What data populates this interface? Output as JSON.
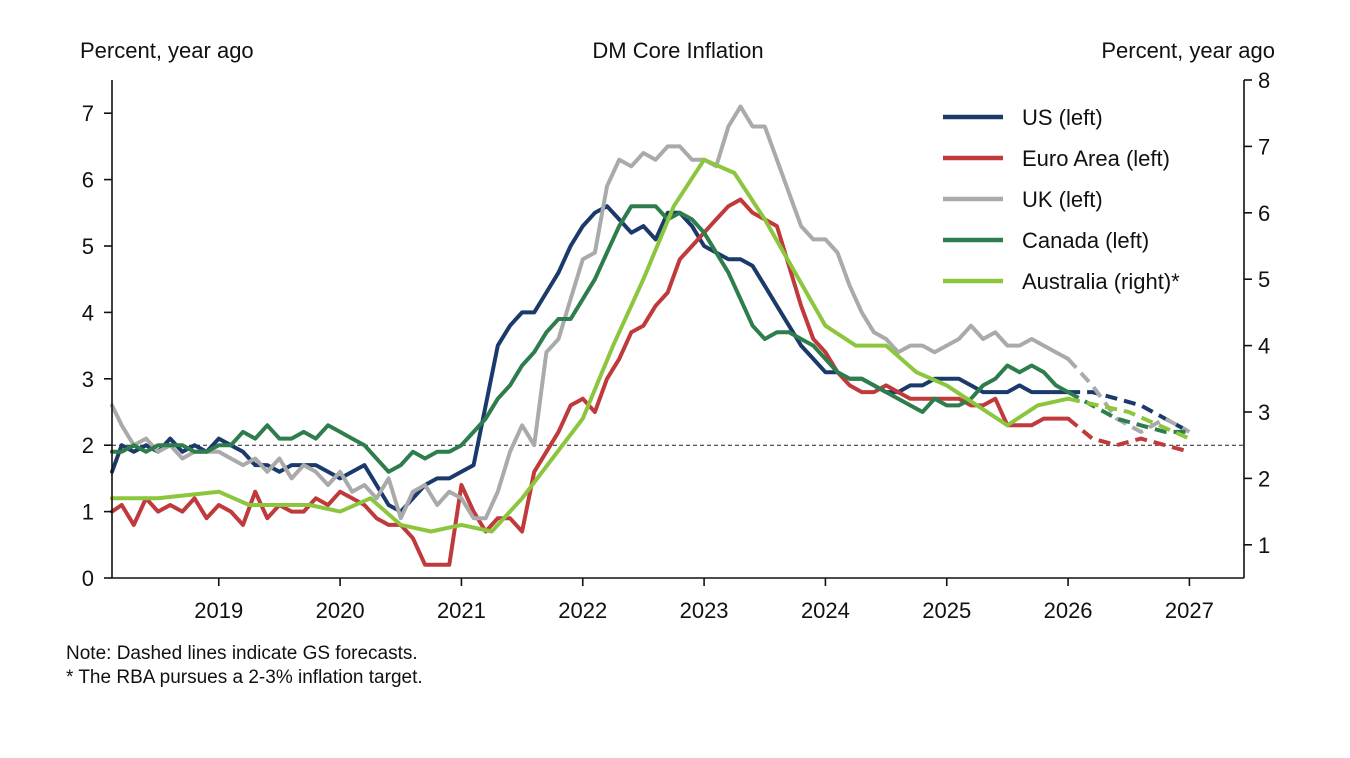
{
  "chart_data": {
    "type": "line",
    "title": "DM Core Inflation",
    "ylabel_left": "Percent, year ago",
    "ylabel_right": "Percent, year ago",
    "x_range": [
      2018.12,
      2027.45
    ],
    "x_ticks": [
      2019,
      2020,
      2021,
      2022,
      2023,
      2024,
      2025,
      2026,
      2027
    ],
    "ylim_left": [
      0,
      7.5
    ],
    "ylim_right": [
      0.5,
      8
    ],
    "y_ticks_left": [
      0,
      1,
      2,
      3,
      4,
      5,
      6,
      7
    ],
    "y_ticks_right": [
      1,
      2,
      3,
      4,
      5,
      6,
      7,
      8
    ],
    "reference_line": {
      "axis": "left",
      "y": 2,
      "style": "dashed"
    },
    "legend_position": "top-right",
    "series": [
      {
        "name": "US (left)",
        "axis": "left",
        "color": "#1b3a6b",
        "x": [
          2018.12,
          2018.2,
          2018.3,
          2018.4,
          2018.5,
          2018.6,
          2018.7,
          2018.8,
          2018.9,
          2019.0,
          2019.1,
          2019.2,
          2019.3,
          2019.4,
          2019.5,
          2019.6,
          2019.7,
          2019.8,
          2019.9,
          2020.0,
          2020.1,
          2020.2,
          2020.3,
          2020.4,
          2020.5,
          2020.6,
          2020.7,
          2020.8,
          2020.9,
          2021.0,
          2021.1,
          2021.2,
          2021.3,
          2021.4,
          2021.5,
          2021.6,
          2021.7,
          2021.8,
          2021.9,
          2022.0,
          2022.1,
          2022.2,
          2022.3,
          2022.4,
          2022.5,
          2022.6,
          2022.7,
          2022.8,
          2022.9,
          2023.0,
          2023.1,
          2023.2,
          2023.3,
          2023.4,
          2023.5,
          2023.6,
          2023.7,
          2023.8,
          2023.9,
          2024.0,
          2024.1,
          2024.2,
          2024.3,
          2024.4,
          2024.5,
          2024.6,
          2024.7,
          2024.8,
          2024.9,
          2025.0,
          2025.1,
          2025.2,
          2025.3,
          2025.4,
          2025.5,
          2025.6,
          2025.7,
          2025.8,
          2025.9,
          2026.0
        ],
        "y": [
          1.6,
          2.0,
          1.9,
          2.0,
          1.9,
          2.1,
          1.9,
          2.0,
          1.9,
          2.1,
          2.0,
          1.9,
          1.7,
          1.7,
          1.6,
          1.7,
          1.7,
          1.7,
          1.6,
          1.5,
          1.6,
          1.7,
          1.4,
          1.1,
          1.0,
          1.2,
          1.4,
          1.5,
          1.5,
          1.6,
          1.7,
          2.6,
          3.5,
          3.8,
          4.0,
          4.0,
          4.3,
          4.6,
          5.0,
          5.3,
          5.5,
          5.6,
          5.4,
          5.2,
          5.3,
          5.1,
          5.5,
          5.5,
          5.3,
          5.0,
          4.9,
          4.8,
          4.8,
          4.7,
          4.4,
          4.1,
          3.8,
          3.5,
          3.3,
          3.1,
          3.1,
          3.0,
          3.0,
          2.9,
          2.8,
          2.8,
          2.9,
          2.9,
          3.0,
          3.0,
          3.0,
          2.9,
          2.8,
          2.8,
          2.8,
          2.9,
          2.8,
          2.8,
          2.8,
          2.8
        ],
        "forecast_x": [
          2026.0,
          2026.2,
          2026.4,
          2026.6,
          2026.8,
          2027.0
        ],
        "forecast_y": [
          2.8,
          2.8,
          2.7,
          2.6,
          2.4,
          2.2
        ]
      },
      {
        "name": "Euro Area (left)",
        "axis": "left",
        "color": "#c0393b",
        "x": [
          2018.12,
          2018.2,
          2018.3,
          2018.4,
          2018.5,
          2018.6,
          2018.7,
          2018.8,
          2018.9,
          2019.0,
          2019.1,
          2019.2,
          2019.3,
          2019.4,
          2019.5,
          2019.6,
          2019.7,
          2019.8,
          2019.9,
          2020.0,
          2020.1,
          2020.2,
          2020.3,
          2020.4,
          2020.5,
          2020.6,
          2020.7,
          2020.8,
          2020.9,
          2021.0,
          2021.1,
          2021.2,
          2021.3,
          2021.4,
          2021.5,
          2021.6,
          2021.7,
          2021.8,
          2021.9,
          2022.0,
          2022.1,
          2022.2,
          2022.3,
          2022.4,
          2022.5,
          2022.6,
          2022.7,
          2022.8,
          2022.9,
          2023.0,
          2023.1,
          2023.2,
          2023.3,
          2023.4,
          2023.5,
          2023.6,
          2023.7,
          2023.8,
          2023.9,
          2024.0,
          2024.1,
          2024.2,
          2024.3,
          2024.4,
          2024.5,
          2024.6,
          2024.7,
          2024.8,
          2024.9,
          2025.0,
          2025.1,
          2025.2,
          2025.3,
          2025.4,
          2025.5,
          2025.6,
          2025.7,
          2025.8,
          2025.9,
          2026.0
        ],
        "y": [
          1.0,
          1.1,
          0.8,
          1.2,
          1.0,
          1.1,
          1.0,
          1.2,
          0.9,
          1.1,
          1.0,
          0.8,
          1.3,
          0.9,
          1.1,
          1.0,
          1.0,
          1.2,
          1.1,
          1.3,
          1.2,
          1.1,
          0.9,
          0.8,
          0.8,
          0.6,
          0.2,
          0.2,
          0.2,
          1.4,
          1.0,
          0.7,
          0.9,
          0.9,
          0.7,
          1.6,
          1.9,
          2.2,
          2.6,
          2.7,
          2.5,
          3.0,
          3.3,
          3.7,
          3.8,
          4.1,
          4.3,
          4.8,
          5.0,
          5.2,
          5.4,
          5.6,
          5.7,
          5.5,
          5.4,
          5.3,
          4.7,
          4.1,
          3.6,
          3.4,
          3.1,
          2.9,
          2.8,
          2.8,
          2.9,
          2.8,
          2.7,
          2.7,
          2.7,
          2.7,
          2.7,
          2.6,
          2.6,
          2.7,
          2.3,
          2.3,
          2.3,
          2.4,
          2.4,
          2.4
        ],
        "forecast_x": [
          2026.0,
          2026.2,
          2026.4,
          2026.6,
          2026.8,
          2027.0
        ],
        "forecast_y": [
          2.4,
          2.1,
          2.0,
          2.1,
          2.0,
          1.9
        ]
      },
      {
        "name": "UK (left)",
        "axis": "left",
        "color": "#aaaaaa",
        "x": [
          2018.12,
          2018.2,
          2018.3,
          2018.4,
          2018.5,
          2018.6,
          2018.7,
          2018.8,
          2018.9,
          2019.0,
          2019.1,
          2019.2,
          2019.3,
          2019.4,
          2019.5,
          2019.6,
          2019.7,
          2019.8,
          2019.9,
          2020.0,
          2020.1,
          2020.2,
          2020.3,
          2020.4,
          2020.5,
          2020.6,
          2020.7,
          2020.8,
          2020.9,
          2021.0,
          2021.1,
          2021.2,
          2021.3,
          2021.4,
          2021.5,
          2021.6,
          2021.7,
          2021.8,
          2021.9,
          2022.0,
          2022.1,
          2022.2,
          2022.3,
          2022.4,
          2022.5,
          2022.6,
          2022.7,
          2022.8,
          2022.9,
          2023.0,
          2023.1,
          2023.2,
          2023.3,
          2023.4,
          2023.5,
          2023.6,
          2023.7,
          2023.8,
          2023.9,
          2024.0,
          2024.1,
          2024.2,
          2024.3,
          2024.4,
          2024.5,
          2024.6,
          2024.7,
          2024.8,
          2024.9,
          2025.0,
          2025.1,
          2025.2,
          2025.3,
          2025.4,
          2025.5,
          2025.6,
          2025.7,
          2025.8,
          2025.9,
          2026.0
        ],
        "y": [
          2.6,
          2.3,
          2.0,
          2.1,
          1.9,
          2.0,
          1.8,
          1.9,
          1.9,
          1.9,
          1.8,
          1.7,
          1.8,
          1.6,
          1.8,
          1.5,
          1.7,
          1.6,
          1.4,
          1.6,
          1.3,
          1.4,
          1.2,
          1.5,
          0.9,
          1.3,
          1.4,
          1.1,
          1.3,
          1.2,
          0.9,
          0.9,
          1.3,
          1.9,
          2.3,
          2.0,
          3.4,
          3.6,
          4.2,
          4.8,
          4.9,
          5.9,
          6.3,
          6.2,
          6.4,
          6.3,
          6.5,
          6.5,
          6.3,
          6.3,
          6.2,
          6.8,
          7.1,
          6.8,
          6.8,
          6.3,
          5.8,
          5.3,
          5.1,
          5.1,
          4.9,
          4.4,
          4.0,
          3.7,
          3.6,
          3.4,
          3.5,
          3.5,
          3.4,
          3.5,
          3.6,
          3.8,
          3.6,
          3.7,
          3.5,
          3.5,
          3.6,
          3.5,
          3.4,
          3.3
        ],
        "forecast_x": [
          2026.0,
          2026.2,
          2026.4,
          2026.6,
          2026.8,
          2027.0
        ],
        "forecast_y": [
          3.3,
          2.9,
          2.4,
          2.2,
          2.4,
          2.2
        ]
      },
      {
        "name": "Canada (left)",
        "axis": "left",
        "color": "#2e7d4c",
        "x": [
          2018.12,
          2018.2,
          2018.3,
          2018.4,
          2018.5,
          2018.6,
          2018.7,
          2018.8,
          2018.9,
          2019.0,
          2019.1,
          2019.2,
          2019.3,
          2019.4,
          2019.5,
          2019.6,
          2019.7,
          2019.8,
          2019.9,
          2020.0,
          2020.1,
          2020.2,
          2020.3,
          2020.4,
          2020.5,
          2020.6,
          2020.7,
          2020.8,
          2020.9,
          2021.0,
          2021.1,
          2021.2,
          2021.3,
          2021.4,
          2021.5,
          2021.6,
          2021.7,
          2021.8,
          2021.9,
          2022.0,
          2022.1,
          2022.2,
          2022.3,
          2022.4,
          2022.5,
          2022.6,
          2022.7,
          2022.8,
          2022.9,
          2023.0,
          2023.1,
          2023.2,
          2023.3,
          2023.4,
          2023.5,
          2023.6,
          2023.7,
          2023.8,
          2023.9,
          2024.0,
          2024.1,
          2024.2,
          2024.3,
          2024.4,
          2024.5,
          2024.6,
          2024.7,
          2024.8,
          2024.9,
          2025.0,
          2025.1,
          2025.2,
          2025.3,
          2025.4,
          2025.5,
          2025.6,
          2025.7,
          2025.8,
          2025.9,
          2026.0
        ],
        "y": [
          1.9,
          1.9,
          2.0,
          1.9,
          2.0,
          2.0,
          2.0,
          1.9,
          1.9,
          2.0,
          2.0,
          2.2,
          2.1,
          2.3,
          2.1,
          2.1,
          2.2,
          2.1,
          2.3,
          2.2,
          2.1,
          2.0,
          1.8,
          1.6,
          1.7,
          1.9,
          1.8,
          1.9,
          1.9,
          2.0,
          2.2,
          2.4,
          2.7,
          2.9,
          3.2,
          3.4,
          3.7,
          3.9,
          3.9,
          4.2,
          4.5,
          4.9,
          5.3,
          5.6,
          5.6,
          5.6,
          5.4,
          5.5,
          5.4,
          5.2,
          4.9,
          4.6,
          4.2,
          3.8,
          3.6,
          3.7,
          3.7,
          3.6,
          3.5,
          3.3,
          3.1,
          3.0,
          3.0,
          2.9,
          2.8,
          2.7,
          2.6,
          2.5,
          2.7,
          2.6,
          2.6,
          2.7,
          2.9,
          3.0,
          3.2,
          3.1,
          3.2,
          3.1,
          2.9,
          2.8
        ],
        "forecast_x": [
          2026.0,
          2026.2,
          2026.4,
          2026.6,
          2026.8,
          2027.0
        ],
        "forecast_y": [
          2.8,
          2.6,
          2.4,
          2.3,
          2.2,
          2.2
        ]
      },
      {
        "name": "Australia (right)*",
        "axis": "right",
        "color": "#8cc63f",
        "x": [
          2018.12,
          2018.5,
          2019.0,
          2019.25,
          2019.5,
          2019.75,
          2020.0,
          2020.25,
          2020.5,
          2020.75,
          2021.0,
          2021.25,
          2021.5,
          2021.75,
          2022.0,
          2022.25,
          2022.5,
          2022.75,
          2023.0,
          2023.25,
          2023.5,
          2023.75,
          2024.0,
          2024.25,
          2024.5,
          2024.75,
          2025.0,
          2025.25,
          2025.5,
          2025.75,
          2026.0
        ],
        "y": [
          1.7,
          1.7,
          1.8,
          1.6,
          1.6,
          1.6,
          1.5,
          1.7,
          1.3,
          1.2,
          1.3,
          1.2,
          1.7,
          2.3,
          2.9,
          4.0,
          5.0,
          6.1,
          6.8,
          6.6,
          5.9,
          5.1,
          4.3,
          4.0,
          4.0,
          3.6,
          3.4,
          3.1,
          2.8,
          3.1,
          3.2
        ],
        "forecast_x": [
          2026.0,
          2026.25,
          2026.5,
          2026.75,
          2027.0
        ],
        "forecast_y": [
          3.2,
          3.1,
          3.0,
          2.8,
          2.6
        ]
      }
    ]
  },
  "note_lines": [
    "Note: Dashed lines indicate GS forecasts.",
    "* The RBA pursues a 2-3% inflation target."
  ]
}
